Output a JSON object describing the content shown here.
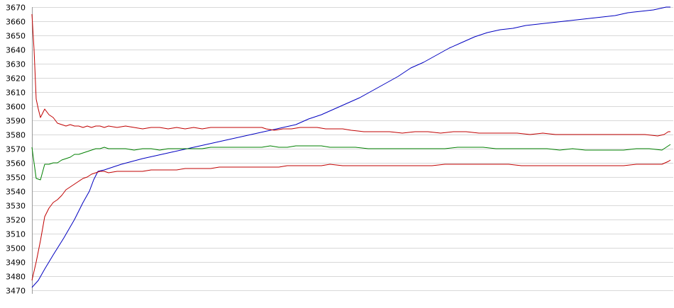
{
  "chart_data": {
    "type": "line",
    "title": "",
    "xlabel": "",
    "ylabel": "",
    "ylim": [
      3470,
      3670
    ],
    "xlim": [
      0,
      300
    ],
    "yticks": [
      3470,
      3480,
      3490,
      3500,
      3510,
      3520,
      3530,
      3540,
      3550,
      3560,
      3570,
      3580,
      3590,
      3600,
      3610,
      3620,
      3630,
      3640,
      3650,
      3660,
      3670
    ],
    "grid": {
      "horizontal": true,
      "vertical": false
    },
    "legend": "none",
    "series": [
      {
        "color": "#0000c0",
        "points": [
          [
            0,
            3472
          ],
          [
            3,
            3477
          ],
          [
            6,
            3485
          ],
          [
            10,
            3495
          ],
          [
            15,
            3507
          ],
          [
            20,
            3520
          ],
          [
            24,
            3532
          ],
          [
            27,
            3540
          ],
          [
            29,
            3548
          ],
          [
            31,
            3554
          ],
          [
            34,
            3555
          ],
          [
            38,
            3557
          ],
          [
            42,
            3559
          ],
          [
            47,
            3561
          ],
          [
            52,
            3563
          ],
          [
            58,
            3565
          ],
          [
            64,
            3567
          ],
          [
            70,
            3569
          ],
          [
            76,
            3571
          ],
          [
            82,
            3573
          ],
          [
            88,
            3575
          ],
          [
            94,
            3577
          ],
          [
            100,
            3579
          ],
          [
            106,
            3581
          ],
          [
            112,
            3583
          ],
          [
            118,
            3585
          ],
          [
            124,
            3587
          ],
          [
            130,
            3591
          ],
          [
            136,
            3594
          ],
          [
            142,
            3598
          ],
          [
            148,
            3602
          ],
          [
            154,
            3606
          ],
          [
            160,
            3611
          ],
          [
            166,
            3616
          ],
          [
            172,
            3621
          ],
          [
            178,
            3627
          ],
          [
            184,
            3631
          ],
          [
            190,
            3636
          ],
          [
            196,
            3641
          ],
          [
            202,
            3645
          ],
          [
            208,
            3649
          ],
          [
            214,
            3652
          ],
          [
            220,
            3654
          ],
          [
            226,
            3655
          ],
          [
            232,
            3657
          ],
          [
            238,
            3658
          ],
          [
            244,
            3659
          ],
          [
            250,
            3660
          ],
          [
            256,
            3661
          ],
          [
            262,
            3662
          ],
          [
            268,
            3663
          ],
          [
            274,
            3664
          ],
          [
            280,
            3666
          ],
          [
            286,
            3667
          ],
          [
            292,
            3668
          ],
          [
            298,
            3670
          ],
          [
            300,
            3670
          ]
        ]
      },
      {
        "color": "#c00000",
        "points": [
          [
            0,
            3665
          ],
          [
            1,
            3640
          ],
          [
            2,
            3605
          ],
          [
            3,
            3598
          ],
          [
            4,
            3592
          ],
          [
            6,
            3598
          ],
          [
            8,
            3594
          ],
          [
            10,
            3592
          ],
          [
            12,
            3588
          ],
          [
            14,
            3587
          ],
          [
            16,
            3586
          ],
          [
            18,
            3587
          ],
          [
            20,
            3586
          ],
          [
            22,
            3586
          ],
          [
            24,
            3585
          ],
          [
            26,
            3586
          ],
          [
            28,
            3585
          ],
          [
            30,
            3586
          ],
          [
            32,
            3586
          ],
          [
            34,
            3585
          ],
          [
            36,
            3586
          ],
          [
            40,
            3585
          ],
          [
            44,
            3586
          ],
          [
            48,
            3585
          ],
          [
            52,
            3584
          ],
          [
            56,
            3585
          ],
          [
            60,
            3585
          ],
          [
            64,
            3584
          ],
          [
            68,
            3585
          ],
          [
            72,
            3584
          ],
          [
            76,
            3585
          ],
          [
            80,
            3584
          ],
          [
            84,
            3585
          ],
          [
            88,
            3585
          ],
          [
            92,
            3585
          ],
          [
            96,
            3585
          ],
          [
            100,
            3585
          ],
          [
            104,
            3585
          ],
          [
            108,
            3585
          ],
          [
            110,
            3584
          ],
          [
            114,
            3583
          ],
          [
            118,
            3584
          ],
          [
            122,
            3584
          ],
          [
            126,
            3585
          ],
          [
            130,
            3585
          ],
          [
            134,
            3585
          ],
          [
            138,
            3584
          ],
          [
            142,
            3584
          ],
          [
            146,
            3584
          ],
          [
            150,
            3583
          ],
          [
            156,
            3582
          ],
          [
            162,
            3582
          ],
          [
            168,
            3582
          ],
          [
            174,
            3581
          ],
          [
            180,
            3582
          ],
          [
            186,
            3582
          ],
          [
            192,
            3581
          ],
          [
            198,
            3582
          ],
          [
            204,
            3582
          ],
          [
            210,
            3581
          ],
          [
            216,
            3581
          ],
          [
            222,
            3581
          ],
          [
            228,
            3581
          ],
          [
            234,
            3580
          ],
          [
            240,
            3581
          ],
          [
            246,
            3580
          ],
          [
            252,
            3580
          ],
          [
            258,
            3580
          ],
          [
            264,
            3580
          ],
          [
            270,
            3580
          ],
          [
            276,
            3580
          ],
          [
            282,
            3580
          ],
          [
            288,
            3580
          ],
          [
            294,
            3579
          ],
          [
            297,
            3580
          ],
          [
            299,
            3582
          ],
          [
            300,
            3582
          ]
        ]
      },
      {
        "color": "#008000",
        "points": [
          [
            0,
            3571
          ],
          [
            1,
            3560
          ],
          [
            2,
            3549
          ],
          [
            4,
            3548
          ],
          [
            6,
            3559
          ],
          [
            8,
            3559
          ],
          [
            10,
            3560
          ],
          [
            12,
            3560
          ],
          [
            14,
            3562
          ],
          [
            16,
            3563
          ],
          [
            18,
            3564
          ],
          [
            20,
            3566
          ],
          [
            22,
            3566
          ],
          [
            24,
            3567
          ],
          [
            26,
            3568
          ],
          [
            28,
            3569
          ],
          [
            30,
            3570
          ],
          [
            32,
            3570
          ],
          [
            34,
            3571
          ],
          [
            36,
            3570
          ],
          [
            40,
            3570
          ],
          [
            44,
            3570
          ],
          [
            48,
            3569
          ],
          [
            52,
            3570
          ],
          [
            56,
            3570
          ],
          [
            60,
            3569
          ],
          [
            64,
            3570
          ],
          [
            68,
            3570
          ],
          [
            72,
            3570
          ],
          [
            76,
            3570
          ],
          [
            80,
            3570
          ],
          [
            84,
            3571
          ],
          [
            88,
            3571
          ],
          [
            92,
            3571
          ],
          [
            96,
            3571
          ],
          [
            100,
            3571
          ],
          [
            104,
            3571
          ],
          [
            108,
            3571
          ],
          [
            112,
            3572
          ],
          [
            116,
            3571
          ],
          [
            120,
            3571
          ],
          [
            124,
            3572
          ],
          [
            128,
            3572
          ],
          [
            132,
            3572
          ],
          [
            136,
            3572
          ],
          [
            140,
            3571
          ],
          [
            146,
            3571
          ],
          [
            152,
            3571
          ],
          [
            158,
            3570
          ],
          [
            164,
            3570
          ],
          [
            170,
            3570
          ],
          [
            176,
            3570
          ],
          [
            182,
            3570
          ],
          [
            188,
            3570
          ],
          [
            194,
            3570
          ],
          [
            200,
            3571
          ],
          [
            206,
            3571
          ],
          [
            212,
            3571
          ],
          [
            218,
            3570
          ],
          [
            224,
            3570
          ],
          [
            230,
            3570
          ],
          [
            236,
            3570
          ],
          [
            242,
            3570
          ],
          [
            248,
            3569
          ],
          [
            254,
            3570
          ],
          [
            260,
            3569
          ],
          [
            266,
            3569
          ],
          [
            272,
            3569
          ],
          [
            278,
            3569
          ],
          [
            284,
            3570
          ],
          [
            290,
            3570
          ],
          [
            296,
            3569
          ],
          [
            299,
            3572
          ],
          [
            300,
            3573
          ]
        ]
      },
      {
        "color": "#c00000",
        "points": [
          [
            0,
            3477
          ],
          [
            2,
            3490
          ],
          [
            4,
            3505
          ],
          [
            6,
            3522
          ],
          [
            8,
            3528
          ],
          [
            10,
            3532
          ],
          [
            12,
            3534
          ],
          [
            14,
            3537
          ],
          [
            16,
            3541
          ],
          [
            18,
            3543
          ],
          [
            20,
            3545
          ],
          [
            22,
            3547
          ],
          [
            24,
            3549
          ],
          [
            26,
            3550
          ],
          [
            28,
            3552
          ],
          [
            30,
            3553
          ],
          [
            32,
            3554
          ],
          [
            34,
            3554
          ],
          [
            36,
            3553
          ],
          [
            40,
            3554
          ],
          [
            44,
            3554
          ],
          [
            48,
            3554
          ],
          [
            52,
            3554
          ],
          [
            56,
            3555
          ],
          [
            60,
            3555
          ],
          [
            64,
            3555
          ],
          [
            68,
            3555
          ],
          [
            72,
            3556
          ],
          [
            76,
            3556
          ],
          [
            80,
            3556
          ],
          [
            84,
            3556
          ],
          [
            88,
            3557
          ],
          [
            92,
            3557
          ],
          [
            96,
            3557
          ],
          [
            100,
            3557
          ],
          [
            104,
            3557
          ],
          [
            108,
            3557
          ],
          [
            112,
            3557
          ],
          [
            116,
            3557
          ],
          [
            120,
            3558
          ],
          [
            124,
            3558
          ],
          [
            128,
            3558
          ],
          [
            132,
            3558
          ],
          [
            136,
            3558
          ],
          [
            140,
            3559
          ],
          [
            146,
            3558
          ],
          [
            152,
            3558
          ],
          [
            158,
            3558
          ],
          [
            164,
            3558
          ],
          [
            170,
            3558
          ],
          [
            176,
            3558
          ],
          [
            182,
            3558
          ],
          [
            188,
            3558
          ],
          [
            194,
            3559
          ],
          [
            200,
            3559
          ],
          [
            206,
            3559
          ],
          [
            212,
            3559
          ],
          [
            218,
            3559
          ],
          [
            224,
            3559
          ],
          [
            230,
            3558
          ],
          [
            236,
            3558
          ],
          [
            242,
            3558
          ],
          [
            248,
            3558
          ],
          [
            254,
            3558
          ],
          [
            260,
            3558
          ],
          [
            266,
            3558
          ],
          [
            272,
            3558
          ],
          [
            278,
            3558
          ],
          [
            284,
            3559
          ],
          [
            290,
            3559
          ],
          [
            296,
            3559
          ],
          [
            299,
            3561
          ],
          [
            300,
            3562
          ]
        ]
      }
    ]
  }
}
